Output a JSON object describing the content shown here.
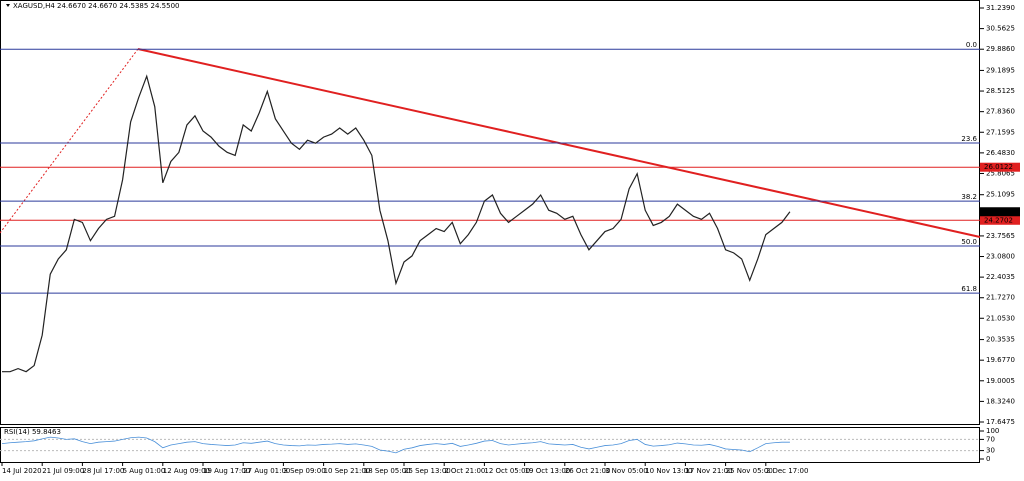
{
  "chart_data": {
    "type": "line",
    "title": "XAGUSD,H4  24.6670 24.6670 24.5385 24.5500",
    "categories": [
      "14 Jul 2020",
      null,
      null,
      null,
      null,
      "21 Jul 09:00",
      null,
      null,
      null,
      null,
      "28 Jul 17:00",
      null,
      null,
      null,
      null,
      "5 Aug 01:00",
      null,
      null,
      null,
      null,
      "12 Aug 09:00",
      null,
      null,
      null,
      null,
      "19 Aug 17:00",
      null,
      null,
      null,
      null,
      "27 Aug 01:00",
      null,
      null,
      null,
      null,
      "3 Sep 09:00",
      null,
      null,
      null,
      null,
      "10 Sep 21:00",
      null,
      null,
      null,
      null,
      "18 Sep 05:00",
      null,
      null,
      null,
      null,
      "25 Sep 13:00",
      null,
      null,
      null,
      null,
      "2 Oct 21:00",
      null,
      null,
      null,
      null,
      "12 Oct 05:00",
      null,
      null,
      null,
      null,
      "19 Oct 13:00",
      null,
      null,
      null,
      null,
      "26 Oct 21:00",
      null,
      null,
      null,
      null,
      "3 Nov 05:00",
      null,
      null,
      null,
      null,
      "10 Nov 13:00",
      null,
      null,
      null,
      null,
      "17 Nov 21:00",
      null,
      null,
      null,
      null,
      "25 Nov 05:00",
      null,
      null,
      null,
      null,
      "2 Dec 17:00",
      null,
      null,
      null
    ],
    "series": [
      {
        "name": "XAGUSD,H4",
        "color": "#222222",
        "values": [
          19.3,
          19.3,
          19.4,
          19.3,
          19.5,
          20.5,
          22.5,
          23.0,
          23.3,
          24.3,
          24.2,
          23.6,
          24.0,
          24.3,
          24.4,
          25.6,
          27.5,
          28.3,
          29.0,
          28.0,
          25.5,
          26.2,
          26.5,
          27.4,
          27.7,
          27.2,
          27.0,
          26.7,
          26.5,
          26.4,
          27.4,
          27.2,
          27.8,
          28.5,
          27.6,
          27.2,
          26.8,
          26.6,
          26.9,
          26.8,
          27.0,
          27.1,
          27.3,
          27.1,
          27.3,
          26.9,
          26.4,
          24.6,
          23.6,
          22.2,
          22.9,
          23.1,
          23.6,
          23.8,
          24.0,
          23.9,
          24.2,
          23.5,
          23.8,
          24.2,
          24.9,
          25.1,
          24.5,
          24.2,
          24.4,
          24.6,
          24.8,
          25.1,
          24.6,
          24.5,
          24.3,
          24.4,
          23.8,
          23.3,
          23.6,
          23.9,
          24.0,
          24.3,
          25.3,
          25.8,
          24.6,
          24.1,
          24.2,
          24.4,
          24.8,
          24.6,
          24.4,
          24.3,
          24.5,
          24.0,
          23.3,
          23.2,
          23.0,
          22.3,
          23.0,
          23.8,
          24.0,
          24.2,
          24.55
        ]
      }
    ],
    "ylim": [
      17.6475,
      31.239
    ],
    "yticks": [
      {
        "value": 31.239,
        "label": "31.2390"
      },
      {
        "value": 30.5625,
        "label": "30.5625"
      },
      {
        "value": 29.886,
        "label": "29.8860"
      },
      {
        "value": 29.1895,
        "label": "29.1895"
      },
      {
        "value": 28.5125,
        "label": "28.5125"
      },
      {
        "value": 27.836,
        "label": "27.8360"
      },
      {
        "value": 27.1595,
        "label": "27.1595"
      },
      {
        "value": 26.483,
        "label": "26.4830"
      },
      {
        "value": 25.8065,
        "label": "25.8065"
      },
      {
        "value": 25.1095,
        "label": "25.1095"
      },
      {
        "value": 23.7565,
        "label": "23.7565"
      },
      {
        "value": 23.08,
        "label": "23.0800"
      },
      {
        "value": 22.4035,
        "label": "22.4035"
      },
      {
        "value": 21.727,
        "label": "21.7270"
      },
      {
        "value": 21.053,
        "label": "21.0530"
      },
      {
        "value": 20.3535,
        "label": "20.3535"
      },
      {
        "value": 19.677,
        "label": "19.6770"
      },
      {
        "value": 19.0005,
        "label": "19.0005"
      },
      {
        "value": 18.324,
        "label": "18.3240"
      },
      {
        "value": 17.6475,
        "label": "17.6475"
      }
    ],
    "levels": [
      {
        "value": 29.886,
        "label": "0.0",
        "color": "#2b3a9b"
      },
      {
        "value": 26.807,
        "label": "23.6",
        "color": "#2b3a9b"
      },
      {
        "value": 24.9,
        "label": "38.2",
        "color": "#2b3a9b"
      },
      {
        "value": 23.425,
        "label": "50.0",
        "color": "#2b3a9b"
      },
      {
        "value": 21.88,
        "label": "61.8",
        "color": "#2b3a9b"
      }
    ],
    "price_tags": [
      {
        "value": 26.0122,
        "label": "26.0122",
        "color": "#e02020"
      },
      {
        "value": 24.2702,
        "label": "24.2702",
        "color": "#e02020"
      },
      {
        "value": 24.55,
        "label": "24.5500",
        "color": "#000000"
      }
    ],
    "rsi": {
      "label": "RSI(14) 59.8463",
      "color": "#4a90d9",
      "ylim": [
        0,
        100
      ],
      "yticks": [
        100,
        70,
        30,
        0
      ],
      "values": [
        55,
        58,
        60,
        62,
        65,
        72,
        78,
        75,
        70,
        72,
        62,
        55,
        60,
        62,
        64,
        70,
        76,
        78,
        75,
        62,
        40,
        50,
        55,
        60,
        62,
        55,
        52,
        50,
        48,
        50,
        58,
        56,
        60,
        64,
        55,
        50,
        48,
        47,
        50,
        49,
        52,
        53,
        55,
        52,
        54,
        50,
        45,
        32,
        28,
        22,
        35,
        40,
        48,
        52,
        55,
        52,
        56,
        45,
        50,
        56,
        64,
        66,
        55,
        50,
        53,
        56,
        58,
        62,
        54,
        52,
        50,
        52,
        42,
        36,
        42,
        48,
        50,
        55,
        66,
        70,
        52,
        46,
        48,
        51,
        57,
        54,
        50,
        49,
        52,
        45,
        36,
        34,
        32,
        26,
        40,
        55,
        58,
        60,
        60
      ]
    }
  }
}
